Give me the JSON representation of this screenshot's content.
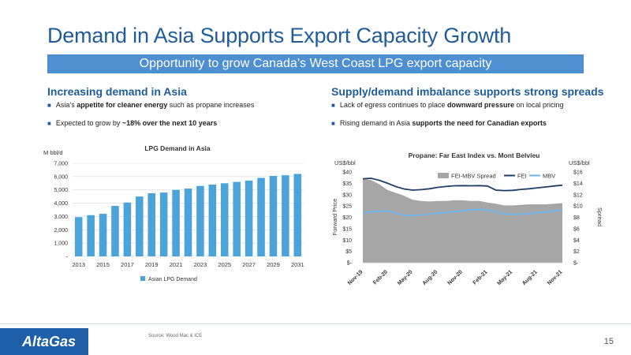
{
  "title": "Demand in Asia Supports Export Capacity Growth",
  "banner": "Opportunity to grow Canada’s West Coast LPG export capacity",
  "left": {
    "heading": "Increasing demand in Asia",
    "bullets": [
      {
        "pre": "Asia’s ",
        "bold": "appetite for cleaner energy",
        "post": " such as propane increases"
      },
      {
        "pre": "Expected to grow by ",
        "bold": "~18% over the next 10 years",
        "post": ""
      }
    ]
  },
  "right": {
    "heading": "Supply/demand imbalance supports strong spreads",
    "bullets": [
      {
        "pre": "Lack of egress continues to place ",
        "bold": "downward pressure",
        "post": " on local pricing"
      },
      {
        "pre": "Rising demand in Asia ",
        "bold": "supports the need for Canadian exports",
        "post": ""
      }
    ]
  },
  "chart_data": [
    {
      "type": "bar",
      "title": "LPG Demand in Asia",
      "ylabel": "M bbl/d",
      "ylim": [
        0,
        7000
      ],
      "yticks": [
        "-",
        "1,000",
        "2,000",
        "3,000",
        "4,000",
        "5,000",
        "6,000",
        "7,000"
      ],
      "categories": [
        "2013",
        "2014",
        "2015",
        "2016",
        "2017",
        "2018",
        "2019",
        "2020",
        "2021",
        "2022",
        "2023",
        "2024",
        "2025",
        "2026",
        "2027",
        "2028",
        "2029",
        "2030",
        "2031"
      ],
      "xtick_labels": [
        "2013",
        "2015",
        "2017",
        "2019",
        "2021",
        "2023",
        "2025",
        "2027",
        "2029",
        "2031"
      ],
      "series": [
        {
          "name": "Asian LPG Demand",
          "values": [
            2950,
            3100,
            3200,
            3800,
            4050,
            4500,
            4750,
            4800,
            5000,
            5100,
            5300,
            5400,
            5500,
            5600,
            5700,
            5900,
            6050,
            6100,
            6200
          ]
        }
      ],
      "color": "#4aa3d9",
      "grid": true,
      "legend": "bottom"
    },
    {
      "type": "line",
      "title": "Propane: Far East Index vs. Mont Belvieu",
      "ylabel_left": "Forward Price",
      "ylabel_right": "Spread",
      "unit_left": "US$/bbl",
      "unit_right": "US$/bbl",
      "ylim_left": [
        0,
        40
      ],
      "ylim_right": [
        0,
        16
      ],
      "yticks_left": [
        "$-",
        "$5",
        "$10",
        "$15",
        "$20",
        "$25",
        "$30",
        "$35",
        "$40"
      ],
      "yticks_right": [
        "$-",
        "$2",
        "$4",
        "$6",
        "$8",
        "$10",
        "$12",
        "$14",
        "$16"
      ],
      "x": [
        "Nov-19",
        "Dec-19",
        "Jan-20",
        "Feb-20",
        "Mar-20",
        "Apr-20",
        "May-20",
        "Jun-20",
        "Jul-20",
        "Aug-20",
        "Sep-20",
        "Oct-20",
        "Nov-20",
        "Dec-20",
        "Jan-21",
        "Feb-21",
        "Mar-21",
        "Apr-21",
        "May-21",
        "Jun-21",
        "Jul-21",
        "Aug-21",
        "Sep-21",
        "Oct-21",
        "Nov-21"
      ],
      "xtick_labels": [
        "Nov-19",
        "Feb-20",
        "May-20",
        "Aug-20",
        "Nov-20",
        "Feb-21",
        "May-21",
        "Aug-21",
        "Nov-21"
      ],
      "series": [
        {
          "name": "FEI-MBV Spread",
          "axis": "right",
          "kind": "area",
          "color": "#a6a6a6",
          "values": [
            14.8,
            14.6,
            13.8,
            12.8,
            12.3,
            11.8,
            11.1,
            10.9,
            10.8,
            10.9,
            10.9,
            11.0,
            11.0,
            10.9,
            10.9,
            10.6,
            10.4,
            10.1,
            10.1,
            10.2,
            10.3,
            10.3,
            10.3,
            10.4,
            10.5
          ]
        },
        {
          "name": "FEI",
          "axis": "left",
          "kind": "line",
          "color": "#1f3f66",
          "values": [
            37.0,
            37.2,
            36.3,
            35.0,
            33.5,
            32.5,
            32.0,
            32.2,
            32.6,
            33.2,
            33.6,
            33.9,
            34.0,
            33.9,
            34.0,
            33.8,
            32.0,
            31.8,
            31.9,
            32.3,
            32.6,
            33.0,
            33.4,
            33.8,
            34.2
          ]
        },
        {
          "name": "MBV",
          "axis": "left",
          "kind": "line",
          "color": "#6fb6ec",
          "values": [
            22.0,
            22.6,
            22.7,
            22.8,
            21.8,
            21.0,
            20.8,
            21.0,
            21.4,
            21.8,
            22.2,
            22.5,
            22.9,
            23.3,
            23.5,
            23.3,
            22.4,
            21.5,
            21.2,
            21.4,
            21.7,
            22.0,
            22.4,
            22.8,
            23.3
          ]
        }
      ],
      "grid": false,
      "legend": "top"
    }
  ],
  "footer": {
    "logo": "AltaGas",
    "source": "Source: Wood Mac & ICE",
    "page": "15"
  }
}
